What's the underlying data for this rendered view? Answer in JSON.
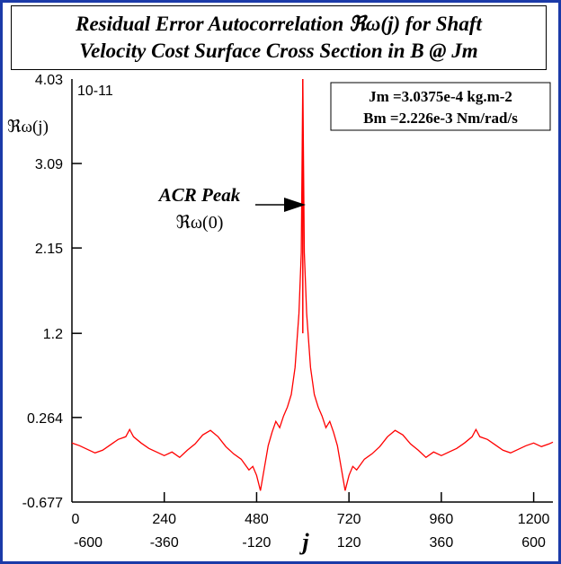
{
  "chart_data": {
    "type": "line",
    "title_line1": "Residual Error Autocorrelation ℜω(j) for Shaft",
    "title_line2": "Velocity Cost Surface Cross Section in B @ Jm",
    "ylabel": "ℜω(j)",
    "xlabel": "j",
    "y_multiplier": "10-11",
    "ylim": [
      -0.677,
      4.03
    ],
    "xlim": [
      0,
      1250
    ],
    "y_ticks": [
      "4.03",
      "3.09",
      "2.15",
      "1.2",
      "0.264",
      "-0.677"
    ],
    "y_tick_values": [
      4.03,
      3.09,
      2.15,
      1.2,
      0.264,
      -0.677
    ],
    "x_ticks_top": [
      "0",
      "240",
      "480",
      "720",
      "960",
      "1200"
    ],
    "x_ticks_bottom": [
      "-600",
      "-360",
      "-120",
      "120",
      "360",
      "600"
    ],
    "x_tick_values": [
      0,
      240,
      480,
      720,
      960,
      1200
    ],
    "annotation_line1": "ACR Peak",
    "annotation_line2": "ℜω(0)",
    "info_line1": "Jm =3.0375e-4 kg.m-2",
    "info_line2": "Bm =2.226e-3 Nm/rad/s",
    "series": [
      {
        "color": "#ff0000",
        "peak": {
          "x": 600,
          "y": 4.03
        },
        "values": [
          [
            0,
            -0.02
          ],
          [
            20,
            -0.05
          ],
          [
            40,
            -0.09
          ],
          [
            60,
            -0.13
          ],
          [
            80,
            -0.1
          ],
          [
            100,
            -0.04
          ],
          [
            120,
            0.02
          ],
          [
            140,
            0.05
          ],
          [
            150,
            0.13
          ],
          [
            160,
            0.05
          ],
          [
            180,
            -0.02
          ],
          [
            200,
            -0.08
          ],
          [
            220,
            -0.12
          ],
          [
            240,
            -0.16
          ],
          [
            260,
            -0.12
          ],
          [
            280,
            -0.18
          ],
          [
            300,
            -0.1
          ],
          [
            320,
            -0.03
          ],
          [
            340,
            0.07
          ],
          [
            360,
            0.12
          ],
          [
            380,
            0.05
          ],
          [
            400,
            -0.06
          ],
          [
            420,
            -0.14
          ],
          [
            440,
            -0.2
          ],
          [
            460,
            -0.32
          ],
          [
            470,
            -0.28
          ],
          [
            480,
            -0.38
          ],
          [
            490,
            -0.55
          ],
          [
            500,
            -0.3
          ],
          [
            510,
            -0.05
          ],
          [
            520,
            0.1
          ],
          [
            530,
            0.22
          ],
          [
            540,
            0.15
          ],
          [
            550,
            0.28
          ],
          [
            560,
            0.38
          ],
          [
            570,
            0.52
          ],
          [
            580,
            0.82
          ],
          [
            590,
            1.42
          ],
          [
            596,
            2.1
          ],
          [
            600,
            4.03
          ],
          [
            604,
            2.1
          ],
          [
            610,
            1.42
          ],
          [
            620,
            0.82
          ],
          [
            630,
            0.52
          ],
          [
            640,
            0.38
          ],
          [
            650,
            0.28
          ],
          [
            660,
            0.15
          ],
          [
            670,
            0.22
          ],
          [
            680,
            0.1
          ],
          [
            690,
            -0.05
          ],
          [
            700,
            -0.3
          ],
          [
            710,
            -0.55
          ],
          [
            720,
            -0.38
          ],
          [
            730,
            -0.28
          ],
          [
            740,
            -0.32
          ],
          [
            760,
            -0.2
          ],
          [
            780,
            -0.14
          ],
          [
            800,
            -0.06
          ],
          [
            820,
            0.05
          ],
          [
            840,
            0.12
          ],
          [
            860,
            0.07
          ],
          [
            880,
            -0.03
          ],
          [
            900,
            -0.1
          ],
          [
            920,
            -0.18
          ],
          [
            940,
            -0.12
          ],
          [
            960,
            -0.16
          ],
          [
            980,
            -0.12
          ],
          [
            1000,
            -0.08
          ],
          [
            1020,
            -0.02
          ],
          [
            1040,
            0.05
          ],
          [
            1050,
            0.13
          ],
          [
            1060,
            0.05
          ],
          [
            1080,
            0.02
          ],
          [
            1100,
            -0.04
          ],
          [
            1120,
            -0.1
          ],
          [
            1140,
            -0.13
          ],
          [
            1160,
            -0.09
          ],
          [
            1180,
            -0.05
          ],
          [
            1200,
            -0.02
          ],
          [
            1220,
            -0.06
          ],
          [
            1240,
            -0.03
          ],
          [
            1250,
            -0.01
          ]
        ]
      }
    ]
  }
}
